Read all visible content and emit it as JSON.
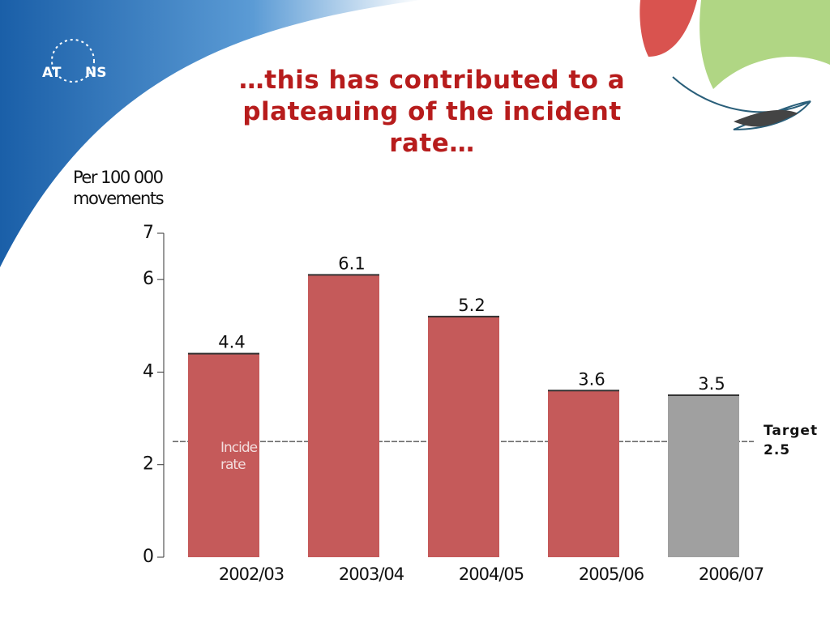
{
  "logo_text": [
    "AT",
    "NS"
  ],
  "chart_data": {
    "type": "bar",
    "title": "…this has contributed to a plateauing of the incident rate…",
    "y_label": "Per 100 000 movements",
    "categories": [
      "2002/03",
      "2003/04",
      "2004/05",
      "2005/06",
      "2006/07"
    ],
    "values": [
      4.4,
      6.1,
      5.2,
      3.6,
      3.5
    ],
    "colors": [
      "#c55a5a",
      "#c55a5a",
      "#c55a5a",
      "#c55a5a",
      "#a0a0a0"
    ],
    "ylim": [
      0,
      7
    ],
    "yticks": [
      0,
      2,
      4,
      6,
      7
    ],
    "target": {
      "label": "Target",
      "value": 2.5
    },
    "annotation": [
      "Incide",
      "rate"
    ]
  }
}
